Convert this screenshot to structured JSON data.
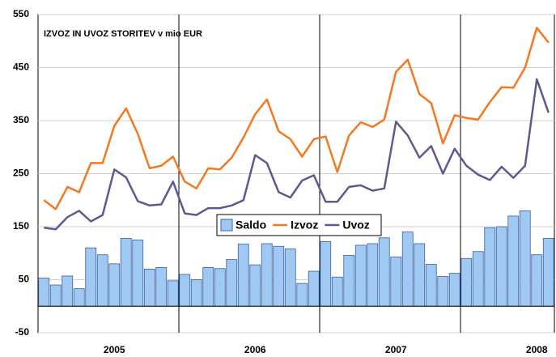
{
  "chart_data": {
    "type": "bar_line",
    "title": "IZVOZ IN UVOZ STORITEV v mio EUR",
    "categories": [
      null,
      null,
      null,
      null,
      null,
      null,
      "2005",
      null,
      null,
      null,
      null,
      null,
      null,
      null,
      null,
      null,
      null,
      null,
      "2006",
      null,
      null,
      null,
      null,
      null,
      null,
      null,
      null,
      null,
      null,
      null,
      "2007",
      null,
      null,
      null,
      null,
      null,
      null,
      null,
      null,
      null,
      null,
      null,
      "2008",
      null
    ],
    "series": [
      {
        "name": "Saldo",
        "kind": "bar",
        "color": "#9fc8f2",
        "values": [
          53,
          40,
          57,
          33,
          110,
          97,
          80,
          128,
          125,
          70,
          73,
          48,
          60,
          50,
          73,
          71,
          88,
          117,
          78,
          118,
          113,
          108,
          43,
          66,
          122,
          55,
          96,
          115,
          118,
          129,
          93,
          140,
          118,
          79,
          56,
          62,
          90,
          103,
          148,
          150,
          170,
          180,
          97,
          128
        ]
      },
      {
        "name": "Izvoz",
        "kind": "line",
        "color": "#f47920",
        "values": [
          200,
          183,
          225,
          215,
          270,
          270,
          340,
          373,
          325,
          260,
          265,
          282,
          235,
          222,
          260,
          258,
          280,
          318,
          362,
          390,
          330,
          315,
          282,
          315,
          320,
          253,
          322,
          347,
          338,
          352,
          442,
          465,
          400,
          383,
          307,
          360,
          355,
          352,
          385,
          413,
          412,
          450,
          525,
          497
        ]
      },
      {
        "name": "Uvoz",
        "kind": "line",
        "color": "#5b5b92",
        "values": [
          148,
          145,
          168,
          180,
          160,
          172,
          258,
          243,
          198,
          190,
          192,
          235,
          175,
          172,
          185,
          185,
          190,
          200,
          285,
          270,
          215,
          205,
          237,
          247,
          197,
          197,
          225,
          228,
          218,
          222,
          348,
          322,
          280,
          302,
          250,
          297,
          265,
          248,
          238,
          263,
          242,
          265,
          428,
          365
        ]
      }
    ],
    "ylim": [
      -50,
      550
    ],
    "yticks": [
      -50,
      50,
      150,
      250,
      350,
      450,
      550
    ],
    "grid": true
  }
}
